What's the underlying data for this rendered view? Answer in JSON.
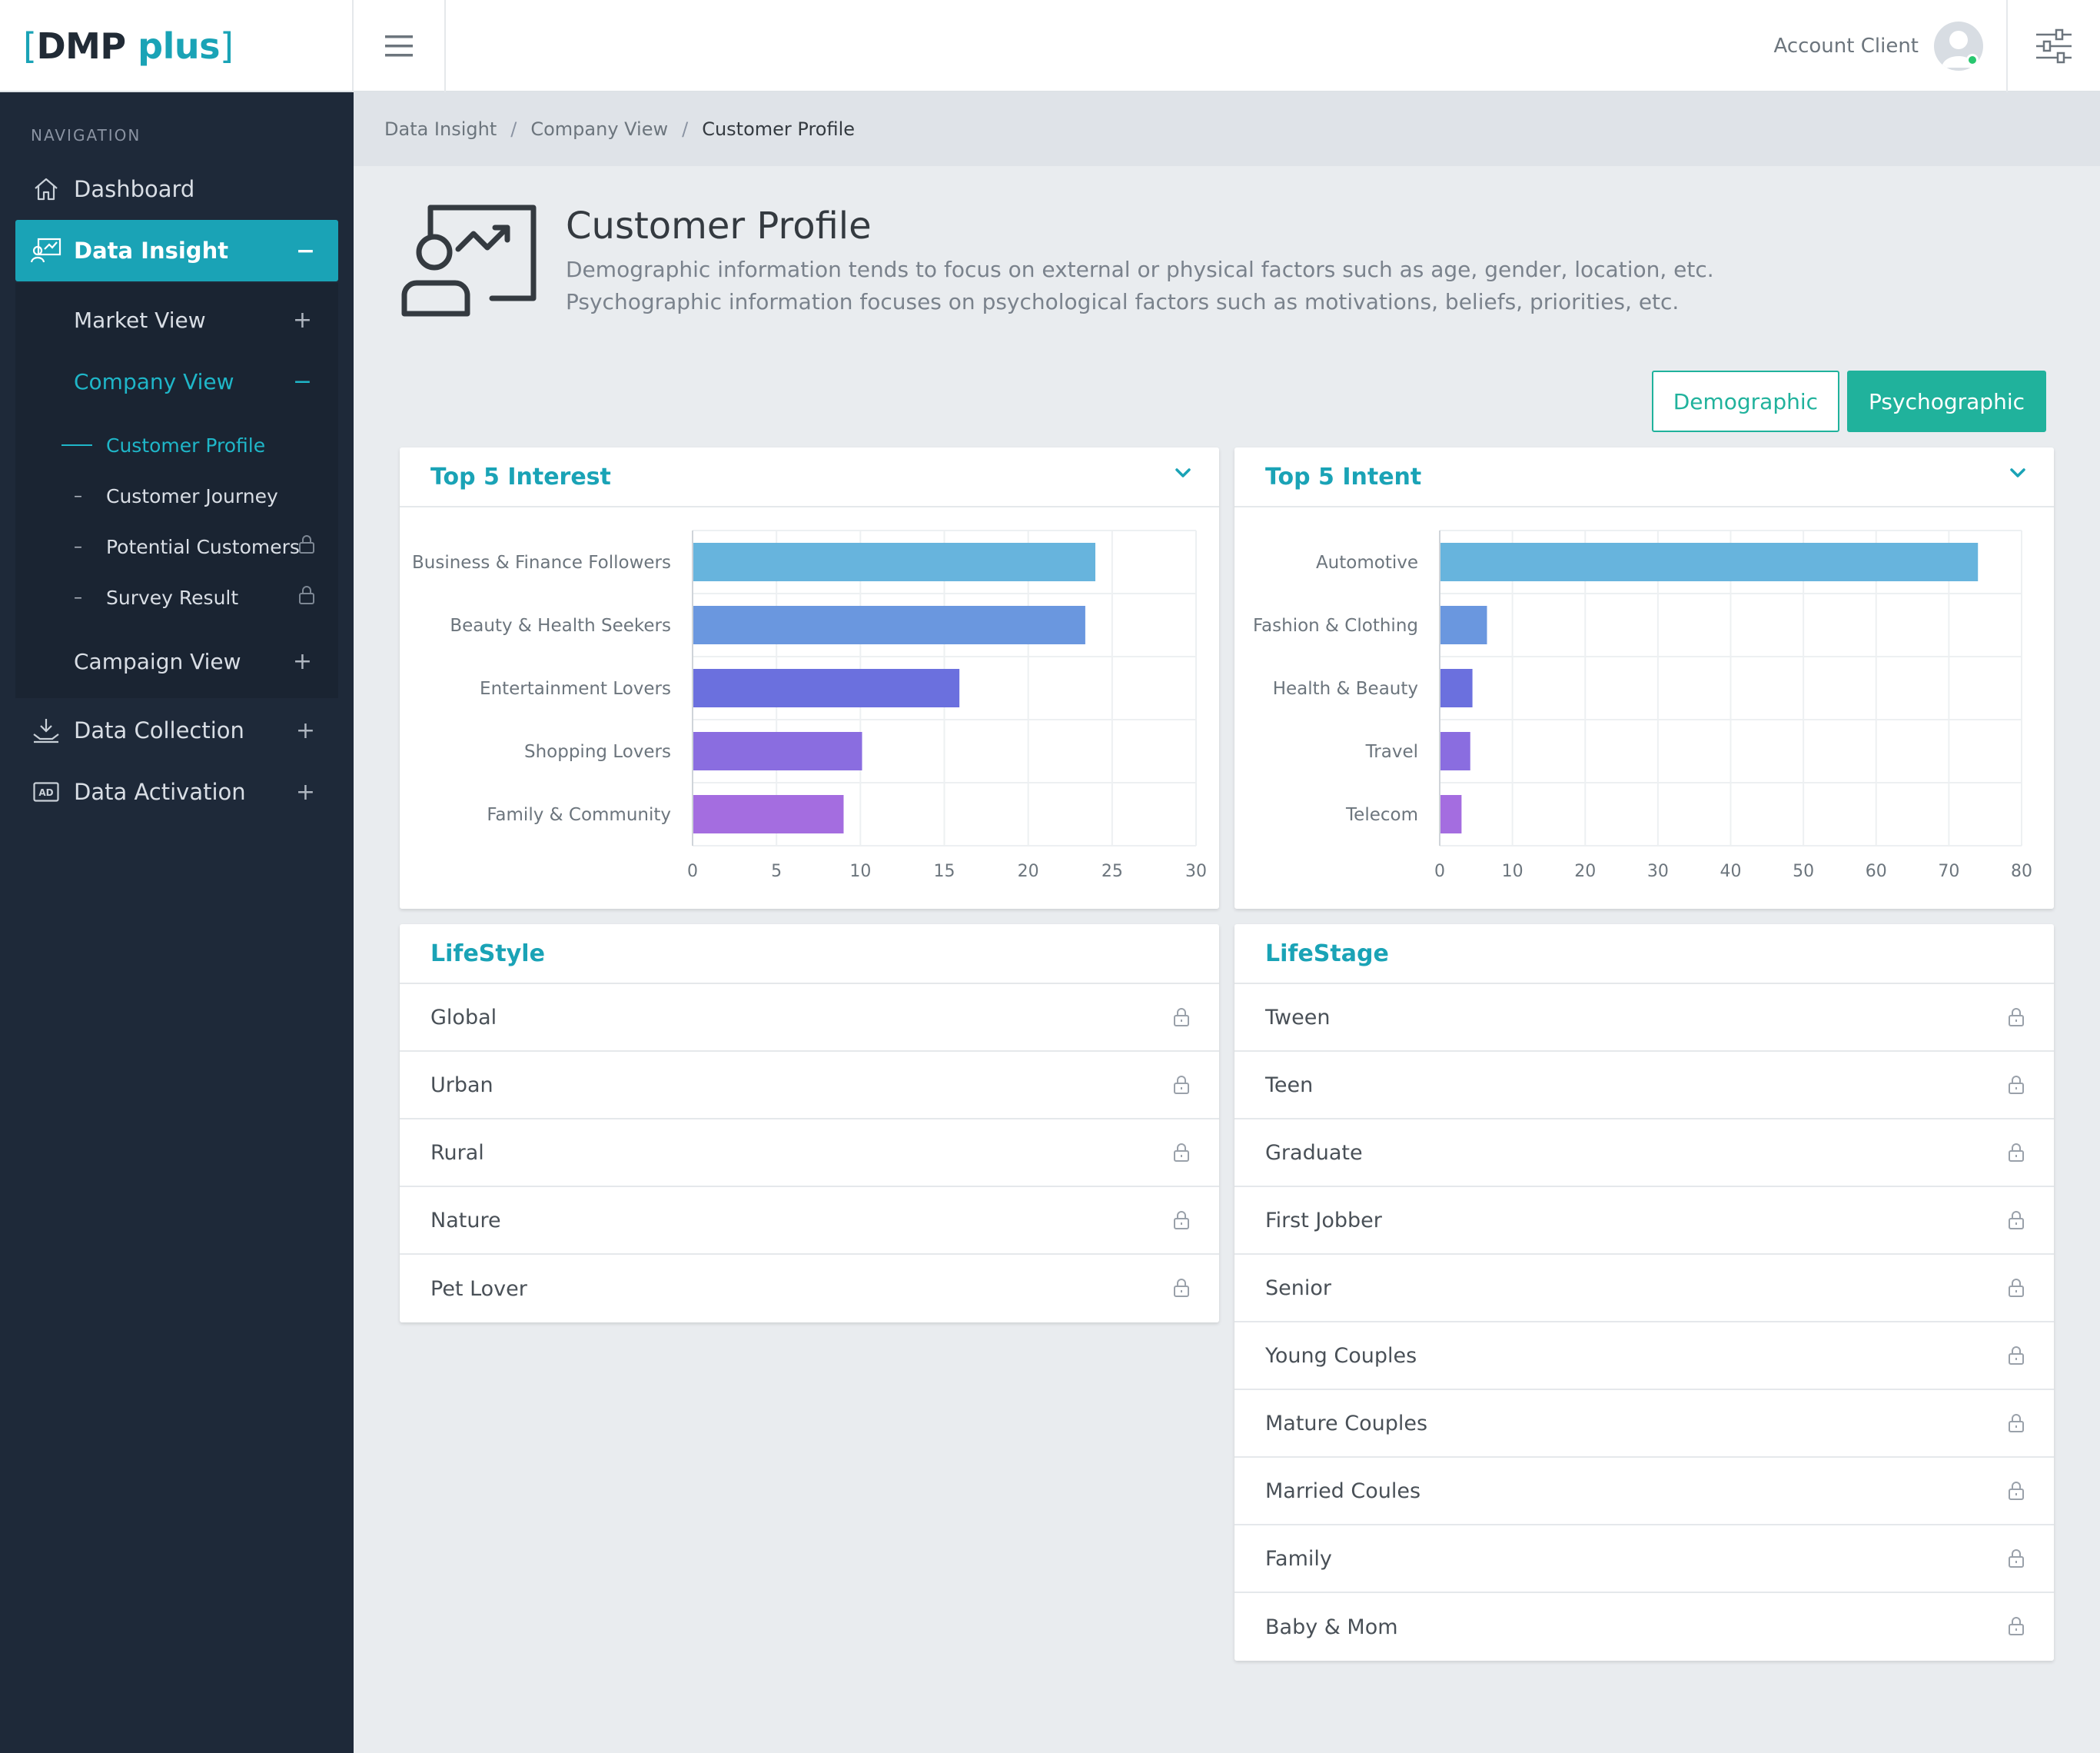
{
  "header": {
    "logo": {
      "bracket_open": "[",
      "name": "DMP",
      "suffix": "plus",
      "bracket_close": "]"
    },
    "account_name": "Account Client",
    "menu_icon": "hamburger-icon",
    "settings_icon": "sliders-icon"
  },
  "sidebar": {
    "caption": "NAVIGATION",
    "items": [
      {
        "label": "Dashboard",
        "icon": "home-icon"
      },
      {
        "label": "Data Insight",
        "icon": "chart-user-icon",
        "toggle": "−"
      },
      {
        "label": "Data Collection",
        "icon": "collect-icon",
        "toggle": "+"
      },
      {
        "label": "Data Activation",
        "icon": "ad-icon",
        "toggle": "+"
      }
    ],
    "subitems": [
      {
        "label": "Market View",
        "toggle": "+"
      },
      {
        "label": "Company View",
        "toggle": "−"
      },
      {
        "label": "Campaign View",
        "toggle": "+"
      }
    ],
    "leaves": [
      {
        "label": "Customer Profile",
        "dash": ""
      },
      {
        "label": "Customer Journey",
        "dash": "–"
      },
      {
        "label": "Potential Customers",
        "dash": "–"
      },
      {
        "label": "Survey Result",
        "dash": "–"
      }
    ]
  },
  "breadcrumb": [
    "Data Insight",
    "Company View",
    "Customer Profile"
  ],
  "breadcrumb_sep": "/",
  "page": {
    "title": "Customer Profile",
    "desc_line1": "Demographic information tends to focus on external or physical factors such as age, gender, location, etc.",
    "desc_line2": "Psychographic information focuses on psychological factors such as motivations, beliefs, priorities, etc."
  },
  "tabs": {
    "demographic": "Demographic",
    "psychographic": "Psychographic"
  },
  "cards": {
    "interest_title": "Top 5 Interest",
    "intent_title": "Top 5 Intent",
    "lifestyle_title": "LifeStyle",
    "lifestage_title": "LifeStage"
  },
  "lifestyle": [
    "Global",
    "Urban",
    "Rural",
    "Nature",
    "Pet Lover"
  ],
  "lifestage": [
    "Tween",
    "Teen",
    "Graduate",
    "First Jobber",
    "Senior",
    "Young Couples",
    "Mature Couples",
    "Married Coules",
    "Family",
    "Baby & Mom"
  ],
  "colors": {
    "accent": "#1aa3b6",
    "button": "#20b29c",
    "sidebar": "#1e2939",
    "bars": [
      "#67b4dd",
      "#6a97df",
      "#6b70de",
      "#8a6de0",
      "#a46de0"
    ]
  },
  "chart_data": [
    {
      "type": "bar",
      "orientation": "horizontal",
      "title": "Top 5 Interest",
      "categories": [
        "Business & Finance Followers",
        "Beauty & Health Seekers",
        "Entertainment Lovers",
        "Shopping Lovers",
        "Family & Community"
      ],
      "values": [
        24,
        23.4,
        15.9,
        10.1,
        9
      ],
      "xlim": [
        0,
        30
      ],
      "xticks": [
        0,
        5,
        10,
        15,
        20,
        25,
        30
      ],
      "grid": true
    },
    {
      "type": "bar",
      "orientation": "horizontal",
      "title": "Top 5 Intent",
      "categories": [
        "Automotive",
        "Fashion & Clothing",
        "Health & Beauty",
        "Travel",
        "Telecom"
      ],
      "values": [
        74,
        6.5,
        4.5,
        4.2,
        3
      ],
      "xlim": [
        0,
        80
      ],
      "xticks": [
        0,
        10,
        20,
        30,
        40,
        50,
        60,
        70,
        80
      ],
      "grid": true
    }
  ]
}
